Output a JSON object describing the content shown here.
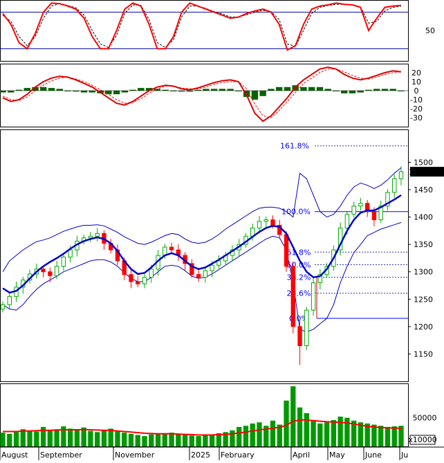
{
  "chart_data": {
    "type": "stock-chart",
    "panels": {
      "stochastic": {
        "type": "line",
        "levels": [
          20,
          80
        ],
        "ylim": [
          0,
          100
        ],
        "tick_labels": [
          "50"
        ],
        "series": [
          {
            "values": [
              78,
              60,
              30,
              20,
              45,
              80,
              95,
              94,
              90,
              85,
              70,
              40,
              20,
              20,
              50,
              85,
              95,
              90,
              60,
              20,
              20,
              40,
              80,
              95,
              90,
              85,
              80,
              75,
              70,
              72,
              78,
              82,
              85,
              80,
              60,
              18,
              25,
              60,
              85,
              90,
              92,
              95,
              93,
              92,
              88,
              50,
              70,
              88,
              90,
              91
            ]
          },
          {
            "values": [
              75,
              65,
              40,
              25,
              40,
              70,
              90,
              94,
              91,
              87,
              75,
              50,
              28,
              22,
              42,
              78,
              92,
              91,
              68,
              30,
              22,
              35,
              72,
              90,
              90,
              86,
              81,
              77,
              72,
              72,
              76,
              80,
              83,
              81,
              68,
              28,
              24,
              50,
              78,
              88,
              91,
              93,
              93,
              92,
              89,
              62,
              65,
              82,
              88,
              90
            ]
          }
        ],
        "colors": {
          "fast": "#ff0000",
          "slow": "#000000"
        }
      },
      "macd": {
        "type": "line+histogram",
        "ylim": [
          -40,
          30
        ],
        "tick_labels": [
          "20",
          "10",
          "0",
          "-10",
          "-20",
          "-30"
        ],
        "series": [
          {
            "values": [
              -8,
              -12,
              -10,
              -4,
              4,
              10,
              14,
              16,
              15,
              12,
              8,
              4,
              -2,
              -8,
              -14,
              -16,
              -12,
              -6,
              0,
              4,
              6,
              5,
              2,
              1,
              3,
              6,
              9,
              11,
              12,
              10,
              -5,
              -25,
              -34,
              -28,
              -18,
              -8,
              4,
              12,
              18,
              24,
              26,
              24,
              18,
              14,
              12,
              14,
              17,
              20,
              22,
              21
            ]
          },
          {
            "values": [
              -6,
              -10,
              -11,
              -7,
              0,
              6,
              11,
              14,
              15,
              13,
              10,
              6,
              1,
              -4,
              -10,
              -14,
              -13,
              -9,
              -3,
              2,
              5,
              5,
              3,
              2,
              2,
              4,
              7,
              9,
              10,
              10,
              2,
              -15,
              -28,
              -30,
              -22,
              -12,
              -2,
              8,
              14,
              20,
              24,
              24,
              21,
              17,
              14,
              13,
              15,
              18,
              20,
              21
            ]
          }
        ],
        "histogram": [
          -2,
          -2,
          1,
          3,
          4,
          4,
          3,
          2,
          0,
          -1,
          -2,
          -2,
          -3,
          -4,
          -4,
          -2,
          1,
          3,
          3,
          2,
          1,
          0,
          -1,
          -1,
          1,
          2,
          2,
          2,
          2,
          0,
          -7,
          -10,
          -6,
          2,
          4,
          4,
          6,
          4,
          4,
          4,
          2,
          0,
          -3,
          -3,
          -2,
          1,
          2,
          2,
          2,
          0
        ]
      },
      "price": {
        "type": "candlestick",
        "x_labels": [
          "August",
          "September",
          "November",
          "2025",
          "February",
          "April",
          "May",
          "June",
          "Ju"
        ],
        "ylim": [
          1100,
          1560
        ],
        "tick_labels": [
          "1500",
          "1450",
          "1400",
          "1350",
          "1300",
          "1250",
          "1200",
          "1150"
        ],
        "last_price": "1482.760",
        "close": [
          1240,
          1255,
          1272,
          1285,
          1296,
          1305,
          1300,
          1293,
          1310,
          1327,
          1340,
          1356,
          1362,
          1365,
          1370,
          1352,
          1340,
          1320,
          1295,
          1282,
          1278,
          1290,
          1305,
          1330,
          1345,
          1340,
          1330,
          1315,
          1295,
          1290,
          1302,
          1312,
          1320,
          1330,
          1340,
          1350,
          1365,
          1380,
          1392,
          1395,
          1385,
          1368,
          1310,
          1200,
          1165,
          1230,
          1280,
          1295,
          1310,
          1340,
          1380,
          1405,
          1420,
          1425,
          1410,
          1395,
          1420,
          1445,
          1470,
          1482.76
        ],
        "moving_average": [
          1270,
          1262,
          1265,
          1275,
          1288,
          1300,
          1310,
          1318,
          1325,
          1333,
          1342,
          1350,
          1356,
          1360,
          1363,
          1360,
          1352,
          1338,
          1320,
          1305,
          1296,
          1298,
          1308,
          1320,
          1330,
          1334,
          1330,
          1320,
          1310,
          1305,
          1308,
          1315,
          1322,
          1330,
          1338,
          1346,
          1355,
          1364,
          1373,
          1380,
          1384,
          1382,
          1370,
          1345,
          1320,
          1300,
          1290,
          1292,
          1305,
          1325,
          1350,
          1375,
          1395,
          1408,
          1412,
          1412,
          1418,
          1425,
          1432,
          1440
        ],
        "bollinger_upper": [
          1300,
          1320,
          1330,
          1340,
          1348,
          1355,
          1358,
          1362,
          1368,
          1374,
          1378,
          1382,
          1385,
          1385,
          1386,
          1384,
          1378,
          1372,
          1364,
          1358,
          1352,
          1350,
          1354,
          1360,
          1366,
          1370,
          1368,
          1360,
          1354,
          1352,
          1354,
          1360,
          1368,
          1378,
          1386,
          1394,
          1402,
          1410,
          1416,
          1418,
          1418,
          1416,
          1410,
          1400,
          1480,
          1470,
          1440,
          1410,
          1400,
          1405,
          1420,
          1440,
          1455,
          1462,
          1458,
          1452,
          1458,
          1468,
          1480,
          1490
        ],
        "bollinger_lower": [
          1240,
          1232,
          1230,
          1240,
          1255,
          1268,
          1278,
          1285,
          1292,
          1300,
          1305,
          1310,
          1315,
          1320,
          1322,
          1322,
          1318,
          1310,
          1298,
          1288,
          1282,
          1282,
          1290,
          1300,
          1310,
          1312,
          1310,
          1302,
          1292,
          1288,
          1290,
          1296,
          1304,
          1312,
          1320,
          1328,
          1336,
          1344,
          1352,
          1360,
          1365,
          1362,
          1340,
          1280,
          1195,
          1190,
          1195,
          1205,
          1215,
          1240,
          1280,
          1310,
          1335,
          1350,
          1366,
          1372,
          1378,
          1382,
          1386,
          1390
        ],
        "fibonacci_levels": [
          {
            "label": "161.8%",
            "value": 1530
          },
          {
            "label": "100.0%",
            "value": 1410
          },
          {
            "label": "61.8%",
            "value": 1336
          },
          {
            "label": "50.0%",
            "value": 1313
          },
          {
            "label": "38.2%",
            "value": 1290
          },
          {
            "label": "23.6%",
            "value": 1261
          },
          {
            "label": "0.0%",
            "value": 1215
          }
        ],
        "colors": {
          "ma": "#0000cc",
          "bands": "#0000cc",
          "fib": "#0000ff",
          "up": "#00aa00",
          "down": "#ff0000"
        }
      },
      "volume": {
        "type": "bar+line",
        "ylim": [
          0,
          110000
        ],
        "tick_labels": [
          "50000"
        ],
        "unit_label": "x10000",
        "values": [
          24000,
          22000,
          25000,
          30000,
          28000,
          26000,
          34000,
          28000,
          30000,
          35000,
          31000,
          29000,
          33000,
          27000,
          25000,
          28000,
          31000,
          26000,
          24000,
          22000,
          20000,
          18000,
          21000,
          23000,
          22000,
          24000,
          22000,
          20000,
          19000,
          18000,
          19000,
          21000,
          23000,
          25000,
          28000,
          34000,
          36000,
          40000,
          42000,
          36000,
          45000,
          38000,
          80000,
          105000,
          68000,
          58000,
          44000,
          40000,
          42000,
          46000,
          52000,
          50000,
          45000,
          42000,
          40000,
          38000,
          36000,
          34000,
          35000,
          36000
        ],
        "moving_average": [
          26000,
          26000,
          26000,
          27000,
          27000,
          27500,
          28000,
          28000,
          28500,
          29000,
          29000,
          29000,
          29500,
          29000,
          28500,
          28000,
          28000,
          27000,
          26000,
          25000,
          24000,
          23000,
          22500,
          22000,
          22000,
          22000,
          21500,
          21000,
          20500,
          20000,
          20000,
          20000,
          20500,
          21000,
          22000,
          23500,
          25000,
          27000,
          29000,
          30000,
          32000,
          33000,
          37000,
          44000,
          46000,
          46000,
          45000,
          44000,
          43000,
          42500,
          42000,
          41000,
          39000,
          37000,
          35000,
          34000,
          33000,
          32500,
          32000,
          31500
        ],
        "colors": {
          "bars": "#009900",
          "ma": "#ff0000"
        }
      }
    }
  }
}
